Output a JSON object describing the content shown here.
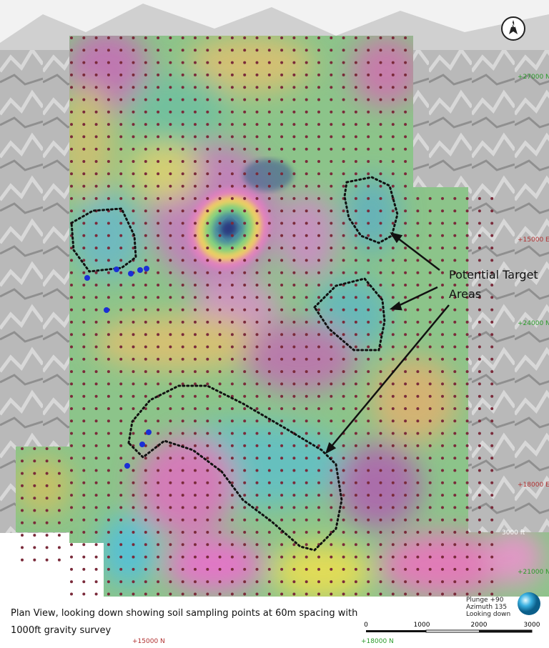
{
  "compass": "N",
  "coordinates": [
    "+27000 N",
    "+15000 E",
    "+24000 N",
    "+18000 E",
    "+21000 N",
    "3000 ft",
    "+15000 N",
    "+18000 N"
  ],
  "annotation": {
    "line1": "Potential Target",
    "line2": "Areas"
  },
  "caption": {
    "line1": "Plan View, looking down showing soil sampling points at 60m spacing with",
    "line2": "1000ft gravity survey"
  },
  "view": {
    "plunge": "Plunge +90",
    "azimuth": "Azimuth 135",
    "looking": "Looking down"
  },
  "scale": [
    "0",
    "1000",
    "2000",
    "3000"
  ]
}
